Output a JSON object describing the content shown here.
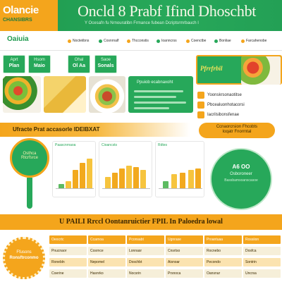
{
  "header": {
    "logo_title": "Olancie",
    "logo_sub": "CHANSIBRS",
    "title": "Oncld 8 Prabf Ifind Dhoschbt",
    "subtitle": "Y Ocesafn fu Nrnouratibn Frmance fubean Dcriptsrmrbauch I"
  },
  "toolbar": {
    "brand": "Oaiuia",
    "items": [
      "Nocteiibns",
      "Cosnrnalf",
      "Thcconstis",
      "Ioanncrss",
      "Coenctbe",
      "Bonliae",
      "Farcahenobe"
    ]
  },
  "tabs": [
    {
      "label": "Aprt",
      "value": "Plan"
    },
    {
      "label": "Hsom",
      "value": "Maio"
    },
    {
      "label": "Ohal",
      "value": "Ol Aa"
    },
    {
      "label": "Saoe",
      "value": "Sonals"
    }
  ],
  "info_card": {
    "title": "Ppuiob ecabnaxoht"
  },
  "hero_right": {
    "text": "Pfrrfrbil"
  },
  "list": [
    {
      "label": "Yoonskrsonaotitse"
    },
    {
      "label": "Pbcealuonhotacorsi"
    },
    {
      "label": "Iacrilsibonsfenae"
    }
  ],
  "banner": {
    "text": "Ufracte Prat accasorle IDEIBXAT"
  },
  "pill": {
    "line1": "Ccnaorcrsion Fhcobts",
    "line2": "Ioqatr Fnorrntal"
  },
  "pin": {
    "line1": "Osthca",
    "line2": "Rtcrfsrce"
  },
  "panels": [
    {
      "title": "Paascnrnaoa"
    },
    {
      "title": "Cioancsts"
    },
    {
      "title": "Rdtes"
    }
  ],
  "badge": {
    "t1": "A6 OO",
    "t2": "Osboroneer",
    "t3": "Bassbamsoanscasoe"
  },
  "strip": {
    "text": "U PAILI Rrccl Oontanruictier FPIL In Paloedra lowal"
  },
  "seal": {
    "line1": "Ffusons",
    "line2": "Ronsftrconmo"
  },
  "table": {
    "header": [
      "Oeocrtc",
      "Ccarnoa",
      "Pconsabt",
      "Ugnrase",
      "Proantuaa",
      "Rossiion"
    ],
    "rows": [
      [
        "Pnucnaor",
        "Cosrnce",
        "Lonnasr",
        "Cnsrtso",
        "Rocnebo",
        "Dosfca"
      ],
      [
        "Ronebln",
        "Nepomel",
        "Doschbt",
        "Aisnoar",
        "Pecondo",
        "Sontrin"
      ],
      [
        "Coerine",
        "Hasnrko",
        "Nocsrin",
        "Prsnoca",
        "Oansnur",
        "Uncrsa"
      ]
    ]
  },
  "colors": {
    "green": "#27a85a",
    "orange": "#f4a51c"
  }
}
